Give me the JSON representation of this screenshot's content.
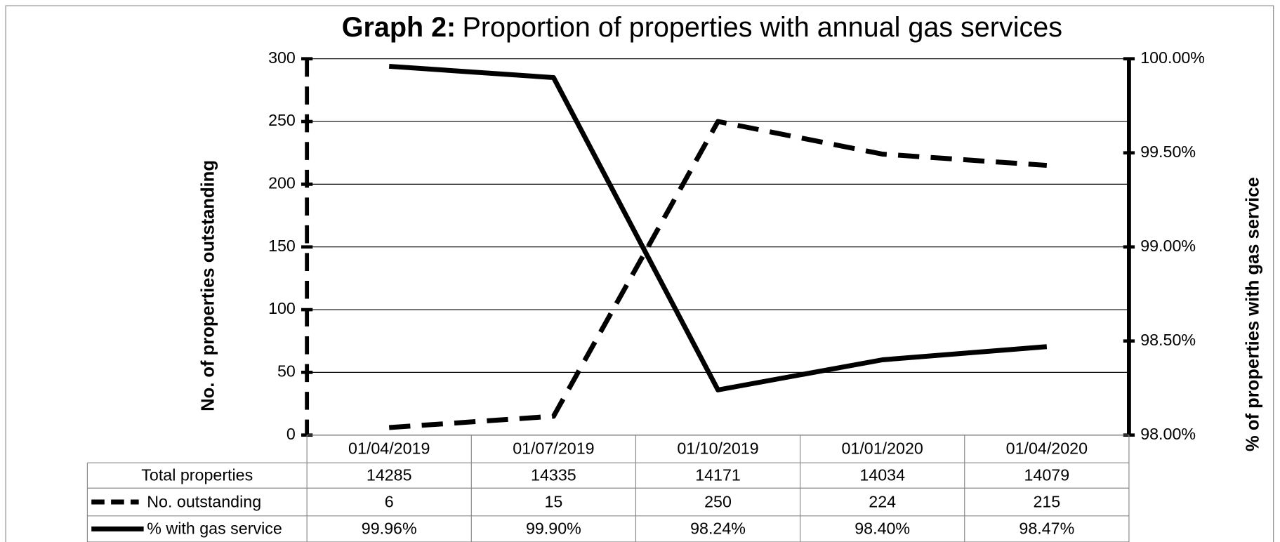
{
  "chart_data": {
    "type": "line",
    "title_label": "Graph 2:",
    "title": "Proportion of properties with annual gas services",
    "y_label": "No. of properties outstanding",
    "y2_label": "% of properties with gas service",
    "categories": [
      "01/04/2019",
      "01/07/2019",
      "01/10/2019",
      "01/01/2020",
      "01/04/2020"
    ],
    "ylim": [
      0,
      300
    ],
    "yticks": [
      0,
      50,
      100,
      150,
      200,
      250,
      300
    ],
    "y2lim": [
      98,
      100
    ],
    "y2ticks": [
      {
        "value": 98,
        "label": "98.00%"
      },
      {
        "value": 98.5,
        "label": "98.50%"
      },
      {
        "value": 99,
        "label": "99.00%"
      },
      {
        "value": 99.5,
        "label": "99.50%"
      },
      {
        "value": 100,
        "label": "100.00%"
      }
    ],
    "grid": true,
    "total_properties": {
      "name": "Total properties",
      "values": [
        14285,
        14335,
        14171,
        14034,
        14079
      ]
    },
    "series": [
      {
        "name": "No. outstanding",
        "color": "#000000",
        "dashed": true,
        "values": [
          6,
          15,
          250,
          224,
          215
        ]
      },
      {
        "name": "% with gas service",
        "color": "#000000",
        "dashed": false,
        "axis": "y2",
        "values": [
          99.96,
          99.9,
          98.24,
          98.4,
          98.47
        ],
        "value_labels": [
          "99.96%",
          "99.90%",
          "98.24%",
          "98.40%",
          "98.47%"
        ]
      }
    ]
  }
}
